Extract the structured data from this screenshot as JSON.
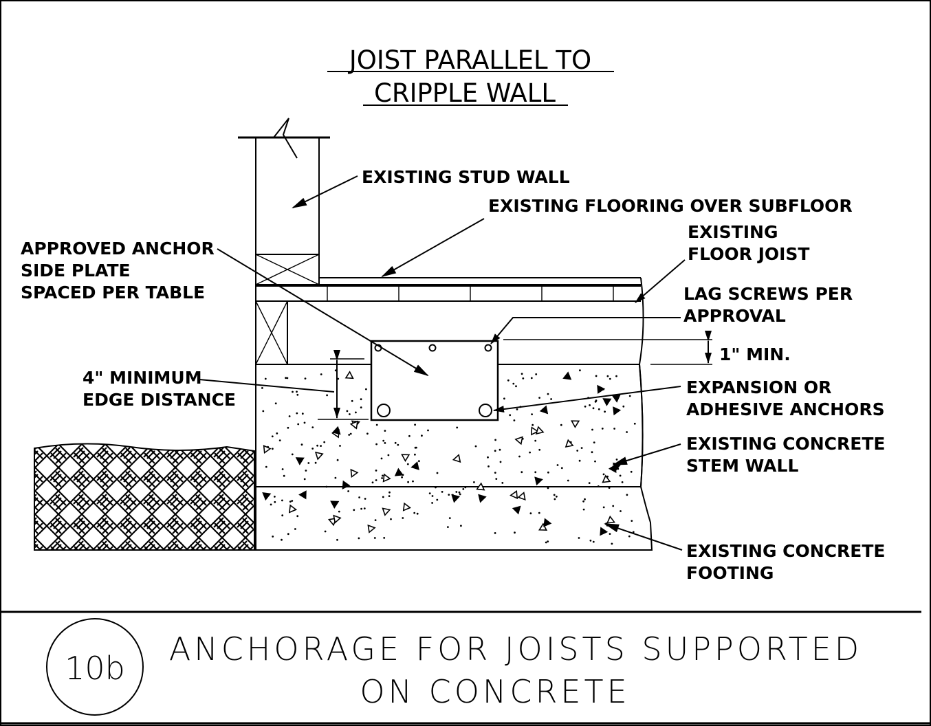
{
  "drawing": {
    "title_line1": "JOIST PARALLEL TO",
    "title_line2": "CRIPPLE WALL",
    "labels": {
      "stud_wall": "EXISTING STUD WALL",
      "flooring": "EXISTING FLOORING OVER SUBFLOOR",
      "floor_joist_1": "EXISTING",
      "floor_joist_2": "FLOOR JOIST",
      "anchor_plate_1": "APPROVED ANCHOR",
      "anchor_plate_2": "SIDE PLATE",
      "anchor_plate_3": "SPACED PER TABLE",
      "lag_screws_1": "LAG SCREWS PER",
      "lag_screws_2": "APPROVAL",
      "min_1in": "1\" MIN.",
      "edge_distance_1": "4\" MINIMUM",
      "edge_distance_2": "EDGE DISTANCE",
      "expansion_1": "EXPANSION OR",
      "expansion_2": "ADHESIVE ANCHORS",
      "stem_wall_1": "EXISTING CONCRETE",
      "stem_wall_2": "STEM WALL",
      "footing_1": "EXISTING CONCRETE",
      "footing_2": "FOOTING"
    }
  },
  "title_block": {
    "detail_number": "10b",
    "title_line1": "ANCHORAGE FOR JOISTS SUPPORTED",
    "title_line2": "ON CONCRETE"
  }
}
